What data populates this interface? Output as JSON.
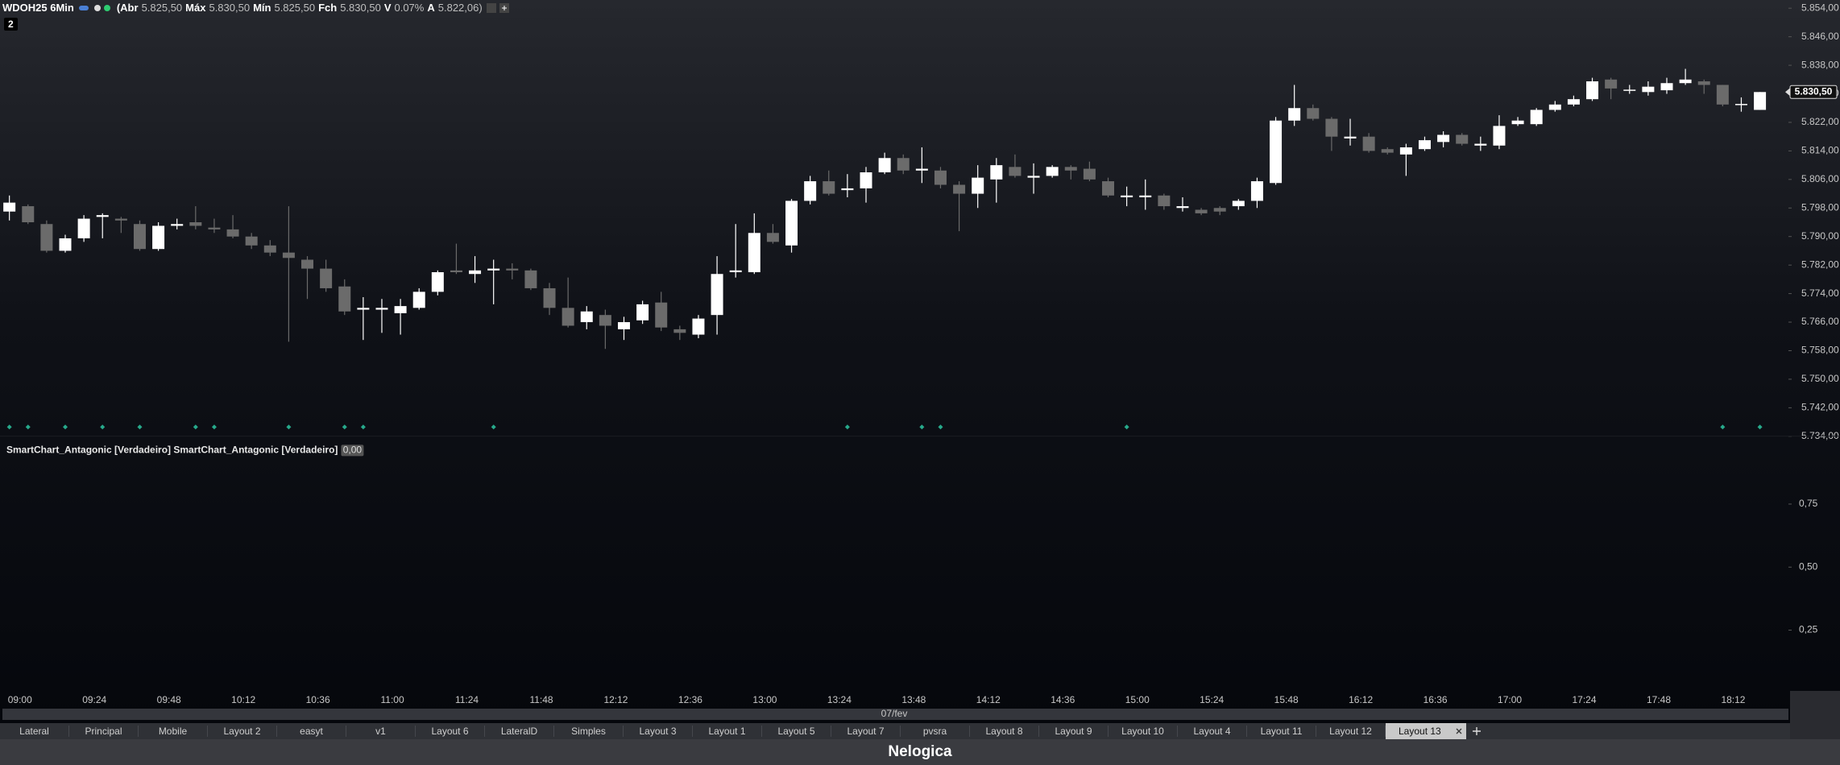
{
  "header": {
    "symbol": "WDOH25 6Min",
    "stats": [
      {
        "label": "(Abr",
        "value": "5.825,50"
      },
      {
        "label": "Máx",
        "value": "5.830,50"
      },
      {
        "label": "Mín",
        "value": "5.825,50"
      },
      {
        "label": "Fch",
        "value": "5.830,50"
      },
      {
        "label": "V",
        "value": "0.07%"
      },
      {
        "label": "A",
        "value": "5.822,06)"
      }
    ],
    "badge": "2"
  },
  "chart_data": [
    {
      "type": "candlestick",
      "categories": [
        "09:00",
        null,
        null,
        null,
        "09:24",
        null,
        null,
        null,
        "09:48",
        null,
        null,
        null,
        "10:12",
        null,
        null,
        null,
        "10:36",
        null,
        null,
        null,
        "11:00",
        null,
        null,
        null,
        "11:24",
        null,
        null,
        null,
        "11:48",
        null,
        null,
        null,
        "12:12",
        null,
        null,
        null,
        "12:36",
        null,
        null,
        null,
        "13:00",
        null,
        null,
        null,
        "13:24",
        null,
        null,
        null,
        "13:48",
        null,
        null,
        null,
        "14:12",
        null,
        null,
        null,
        "14:36",
        null,
        null,
        null,
        "15:00",
        null,
        null,
        null,
        "15:24",
        null,
        null,
        null,
        "15:48",
        null,
        null,
        null,
        "16:12",
        null,
        null,
        null,
        "16:36",
        null,
        null,
        null,
        "17:00",
        null,
        null,
        null,
        "17:24",
        null,
        null,
        null,
        "17:48",
        null,
        null,
        null,
        "18:12",
        null,
        null
      ],
      "open": [
        5797,
        5798.5,
        5793.5,
        5786,
        5789.5,
        5795.5,
        5795,
        5793.5,
        5786.5,
        5793,
        5794,
        5792.5,
        5792,
        5790,
        5787.5,
        5785.5,
        5783.5,
        5781,
        5776,
        5769.5,
        5769.5,
        5768.5,
        5770,
        5774.5,
        5780.5,
        5779.5,
        5780.5,
        5781,
        5780.5,
        5775.5,
        5770,
        5766,
        5768,
        5764,
        5766.5,
        5771.5,
        5764,
        5762.5,
        5768,
        5780,
        5780,
        5791,
        5787.5,
        5800,
        5805.5,
        5803,
        5803.5,
        5808,
        5812,
        5808.5,
        5808.5,
        5804.5,
        5802,
        5806,
        5809.5,
        5806.5,
        5807,
        5809.5,
        5809,
        5805.5,
        5801,
        5801,
        5801.5,
        5798,
        5797.5,
        5798,
        5798.5,
        5800,
        5805,
        5822.5,
        5826,
        5823,
        5817.5,
        5818,
        5814.5,
        5813,
        5814.5,
        5816.5,
        5818.5,
        5815.5,
        5815.5,
        5821.5,
        5821.5,
        5825.5,
        5827,
        5828.5,
        5834,
        5831,
        5830.5,
        5831,
        5833,
        5833.5,
        5832.5,
        5827,
        5825.5
      ],
      "high": [
        5801.5,
        5799,
        5794.5,
        5790.5,
        5796,
        5796.5,
        5795.5,
        5794.5,
        5794,
        5795,
        5798.5,
        5795,
        5796,
        5791,
        5789,
        5798.5,
        5784.5,
        5783.5,
        5778,
        5773,
        5772.5,
        5772.5,
        5775.5,
        5780.5,
        5788,
        5784.5,
        5783.5,
        5782.5,
        5781,
        5777,
        5778.5,
        5770.5,
        5769.5,
        5767.5,
        5772,
        5774.5,
        5765,
        5768,
        5784.5,
        5793.5,
        5796.5,
        5793.5,
        5800.5,
        5807,
        5808.5,
        5807.5,
        5809.5,
        5813.5,
        5813,
        5815,
        5809.5,
        5805.5,
        5810,
        5812,
        5813,
        5810.5,
        5810,
        5810,
        5811,
        5806.5,
        5804,
        5806,
        5802,
        5801,
        5798,
        5798.5,
        5800.5,
        5806.5,
        5823.5,
        5832.5,
        5827,
        5823.5,
        5823,
        5819,
        5815,
        5816,
        5818,
        5819.5,
        5819,
        5818,
        5824,
        5823.5,
        5826,
        5828,
        5829.5,
        5834.5,
        5834.5,
        5832.5,
        5833.5,
        5834.5,
        5837,
        5834,
        5832.5,
        5829,
        5830.5
      ],
      "low": [
        5794.5,
        5793.5,
        5785.5,
        5785.5,
        5788.5,
        5789.5,
        5791,
        5786,
        5786,
        5792,
        5792,
        5791,
        5789.5,
        5786.5,
        5784.5,
        5760.5,
        5772.5,
        5774.5,
        5768,
        5761,
        5763,
        5762.5,
        5769.5,
        5773.5,
        5779.5,
        5777,
        5771,
        5778,
        5775,
        5768,
        5764.5,
        5764,
        5758.5,
        5761,
        5765.5,
        5763.5,
        5761,
        5761.5,
        5762.5,
        5778.5,
        5779.5,
        5788,
        5785.5,
        5799,
        5801.5,
        5801,
        5799.5,
        5807.5,
        5807.5,
        5805,
        5803.5,
        5791.5,
        5798,
        5799.5,
        5806.5,
        5802,
        5806.5,
        5806,
        5805.5,
        5801,
        5798.5,
        5797.5,
        5797.5,
        5797,
        5796,
        5796,
        5797.5,
        5798,
        5804.5,
        5821,
        5822.5,
        5814,
        5815.5,
        5813.5,
        5813,
        5807,
        5814,
        5815,
        5815.5,
        5814,
        5814.5,
        5821,
        5821,
        5825,
        5826.5,
        5828,
        5828.5,
        5830,
        5829.5,
        5830,
        5832.5,
        5830,
        5826.5,
        5825,
        5825.5
      ],
      "close": [
        5799.5,
        5794,
        5786,
        5789.5,
        5795,
        5796,
        5794.5,
        5786.5,
        5793,
        5793.5,
        5793,
        5792,
        5790,
        5787.5,
        5785.5,
        5784,
        5781,
        5775.5,
        5769,
        5770,
        5770,
        5770.5,
        5774.5,
        5780,
        5780,
        5780.5,
        5781,
        5780.5,
        5775.5,
        5770,
        5765,
        5769,
        5765,
        5766,
        5771,
        5764.5,
        5763,
        5767,
        5779.5,
        5780.5,
        5791,
        5788.5,
        5800,
        5805.5,
        5802,
        5803.5,
        5808,
        5812,
        5808.5,
        5809,
        5804.5,
        5802,
        5806.5,
        5810,
        5807,
        5807,
        5809.5,
        5808.5,
        5806,
        5801.5,
        5801.5,
        5801.5,
        5798.5,
        5798.5,
        5796.5,
        5797,
        5800,
        5805.5,
        5822.5,
        5826,
        5823,
        5818,
        5818,
        5814,
        5813.5,
        5815,
        5817,
        5818.5,
        5816,
        5816,
        5821,
        5822.5,
        5825.5,
        5827,
        5828.5,
        5833.5,
        5831.5,
        5831,
        5832,
        5833,
        5834,
        5832.5,
        5827,
        5827,
        5830.5
      ],
      "up_color": "#ffffff",
      "down_color": "#6b6b6b",
      "ylim": [
        5734,
        5854
      ],
      "yticks": [
        {
          "value": 5734,
          "label": "5.734,00"
        },
        {
          "value": 5742,
          "label": "5.742,00"
        },
        {
          "value": 5750,
          "label": "5.750,00"
        },
        {
          "value": 5758,
          "label": "5.758,00"
        },
        {
          "value": 5766,
          "label": "5.766,00"
        },
        {
          "value": 5774,
          "label": "5.774,00"
        },
        {
          "value": 5782,
          "label": "5.782,00"
        },
        {
          "value": 5790,
          "label": "5.790,00"
        },
        {
          "value": 5798,
          "label": "5.798,00"
        },
        {
          "value": 5806,
          "label": "5.806,00"
        },
        {
          "value": 5814,
          "label": "5.814,00"
        },
        {
          "value": 5822,
          "label": "5.822,00"
        },
        {
          "value": 5830,
          "label": "5.830,00"
        },
        {
          "value": 5838,
          "label": "5.838,00"
        },
        {
          "value": 5846,
          "label": "5.846,00"
        },
        {
          "value": 5854,
          "label": "5.854,00"
        }
      ],
      "last_price": {
        "value": 5830.5,
        "label": "5.830,50"
      },
      "signals": [
        0,
        1,
        3,
        5,
        7,
        10,
        11,
        15,
        18,
        19,
        26,
        45,
        49,
        50,
        60,
        92,
        94
      ],
      "signal_color": "#27a98b"
    },
    {
      "type": "line",
      "title": "SmartChart_Antagonic [Verdadeiro] SmartChart_Antagonic [Verdadeiro]",
      "badge": "0,00",
      "ylim": [
        0,
        1
      ],
      "yticks": [
        {
          "value": 0.25,
          "label": "0,25"
        },
        {
          "value": 0.5,
          "label": "0,50"
        },
        {
          "value": 0.75,
          "label": "0,75"
        }
      ]
    }
  ],
  "date_label": "07/fev",
  "tabs": [
    "Lateral",
    "Principal",
    "Mobile",
    "Layout 2",
    "easyt",
    "v1",
    "Layout 6",
    "LateralD",
    "Simples",
    "Layout 3",
    "Layout 1",
    "Layout 5",
    "Layout 7",
    "pvsra",
    "Layout 8",
    "Layout 9",
    "Layout 10",
    "Layout 4",
    "Layout 11",
    "Layout 12",
    "Layout 13"
  ],
  "active_tab": 20,
  "footer": "Nelogica"
}
